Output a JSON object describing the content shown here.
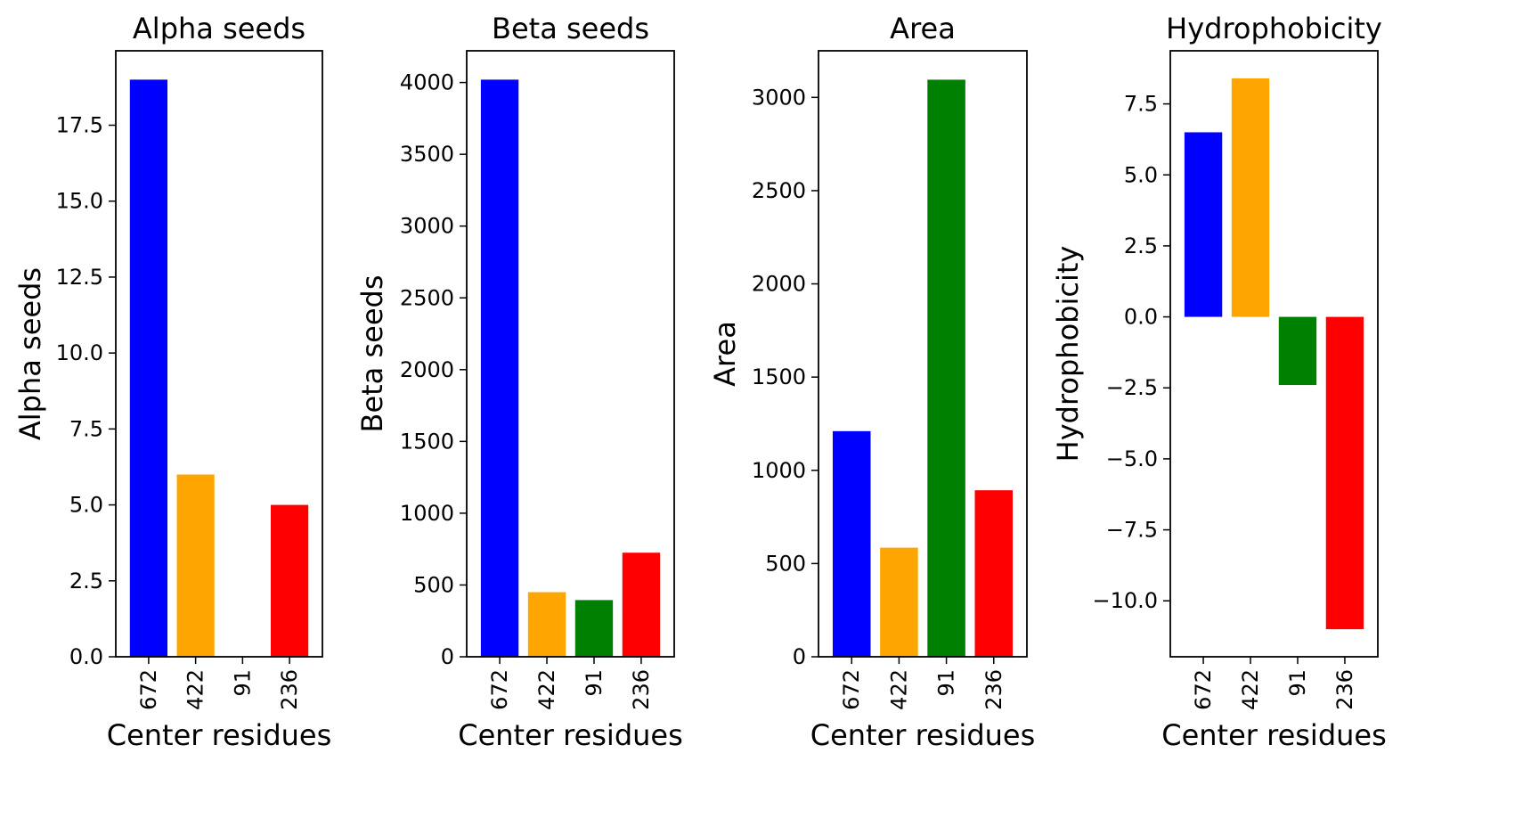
{
  "colors": {
    "bar_colors": [
      "#0000ff",
      "#ffa500",
      "#008000",
      "#ff0000"
    ],
    "axes": "#000000",
    "background": "#ffffff"
  },
  "chart_data": [
    {
      "type": "bar",
      "title": "Alpha seeds",
      "xlabel": "Center residues",
      "ylabel": "Alpha seeds",
      "categories": [
        "672",
        "422",
        "91",
        "236"
      ],
      "values": [
        19,
        6,
        0,
        5
      ],
      "ylim": [
        0,
        19.95
      ],
      "yticks": [
        0,
        2.5,
        5,
        7.5,
        10,
        12.5,
        15,
        17.5
      ],
      "ytick_labels": [
        "0.0",
        "2.5",
        "5.0",
        "7.5",
        "10.0",
        "12.5",
        "15.0",
        "17.5"
      ],
      "grid": false,
      "legend": "none"
    },
    {
      "type": "bar",
      "title": "Beta seeds",
      "xlabel": "Center residues",
      "ylabel": "Beta seeds",
      "categories": [
        "672",
        "422",
        "91",
        "236"
      ],
      "values": [
        4020,
        450,
        395,
        725
      ],
      "ylim": [
        0,
        4221
      ],
      "yticks": [
        0,
        500,
        1000,
        1500,
        2000,
        2500,
        3000,
        3500,
        4000
      ],
      "ytick_labels": [
        "0",
        "500",
        "1000",
        "1500",
        "2000",
        "2500",
        "3000",
        "3500",
        "4000"
      ],
      "grid": false,
      "legend": "none"
    },
    {
      "type": "bar",
      "title": "Area",
      "xlabel": "Center residues",
      "ylabel": "Area",
      "categories": [
        "672",
        "422",
        "91",
        "236"
      ],
      "values": [
        1210,
        585,
        3095,
        893
      ],
      "ylim": [
        0,
        3250
      ],
      "yticks": [
        0,
        500,
        1000,
        1500,
        2000,
        2500,
        3000
      ],
      "ytick_labels": [
        "0",
        "500",
        "1000",
        "1500",
        "2000",
        "2500",
        "3000"
      ],
      "grid": false,
      "legend": "none"
    },
    {
      "type": "bar",
      "title": "Hydrophobicity",
      "xlabel": "Center residues",
      "ylabel": "Hydrophobicity",
      "categories": [
        "672",
        "422",
        "91",
        "236"
      ],
      "values": [
        6.5,
        8.4,
        -2.4,
        -11.0
      ],
      "ylim": [
        -11.97,
        9.37
      ],
      "yticks": [
        -10,
        -7.5,
        -5,
        -2.5,
        0,
        2.5,
        5,
        7.5
      ],
      "ytick_labels": [
        "−10.0",
        "−7.5",
        "−5.0",
        "−2.5",
        "0.0",
        "2.5",
        "5.0",
        "7.5"
      ],
      "grid": false,
      "legend": "none"
    }
  ]
}
